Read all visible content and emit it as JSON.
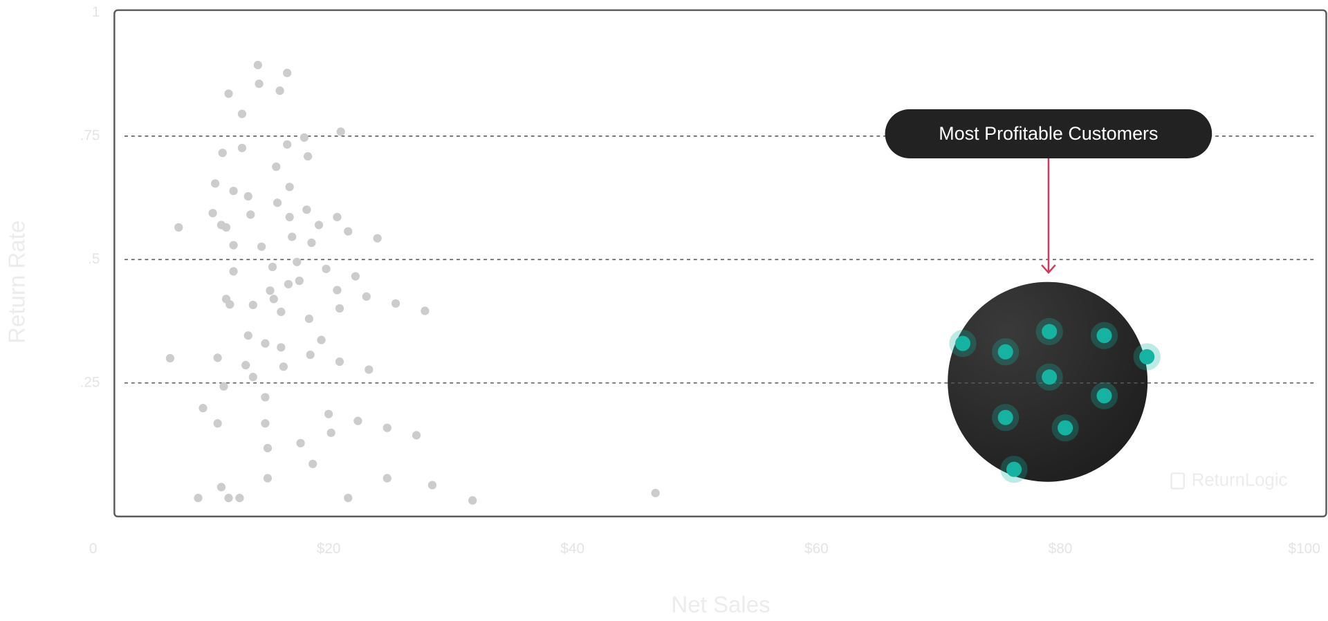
{
  "chart_data": {
    "type": "scatter",
    "x_label": "Net Sales",
    "y_label": "Return Rate",
    "annotation": "Most Profitable Customers",
    "watermark": "ReturnLogic",
    "xlim": [
      0,
      100
    ],
    "ylim": [
      0,
      1
    ],
    "xticks": [
      0,
      {
        "value": 20,
        "label": "$20"
      },
      {
        "value": 40,
        "label": "$40"
      },
      {
        "value": 60,
        "label": "$60"
      },
      {
        "value": 80,
        "label": "$80"
      },
      {
        "value": 100,
        "label": "$100"
      }
    ],
    "yticks": [
      {
        "value": 0.25,
        "label": ".25"
      },
      {
        "value": 0.5,
        "label": ".5"
      },
      {
        "value": 0.75,
        "label": ".75"
      },
      1
    ],
    "grid": true,
    "series": [
      {
        "color": "#cccccc",
        "x": [
          14.2,
          16.6,
          14.3,
          16.0,
          11.8,
          12.9,
          18.0,
          21.0,
          12.9,
          16.6,
          11.3,
          18.3,
          15.7,
          10.7,
          16.8,
          12.2,
          13.4,
          15.8,
          10.5,
          18.2,
          13.6,
          16.8,
          20.7,
          7.7,
          11.2,
          11.6,
          19.2,
          21.6,
          17.0,
          24.0,
          12.2,
          18.6,
          14.5,
          17.4,
          15.4,
          19.8,
          12.2,
          22.2,
          17.6,
          16.7,
          20.7,
          15.2,
          23.1,
          15.5,
          11.6,
          11.9,
          13.8,
          25.5,
          20.9,
          16.1,
          27.9,
          18.4,
          13.4,
          14.8,
          19.4,
          16.1,
          7.0,
          10.9,
          18.5,
          13.2,
          20.9,
          16.3,
          23.3,
          13.8,
          11.4,
          14.8,
          9.7,
          20.0,
          22.4,
          10.9,
          14.8,
          24.8,
          20.2,
          27.2,
          17.7,
          15.0,
          18.7,
          15.0,
          24.8,
          11.2,
          28.5,
          9.3,
          11.8,
          12.7,
          21.6,
          31.8,
          46.8
        ],
        "y": [
          0.894,
          0.878,
          0.856,
          0.842,
          0.836,
          0.795,
          0.747,
          0.759,
          0.726,
          0.733,
          0.716,
          0.709,
          0.688,
          0.654,
          0.647,
          0.639,
          0.628,
          0.615,
          0.594,
          0.601,
          0.591,
          0.586,
          0.586,
          0.565,
          0.57,
          0.565,
          0.57,
          0.557,
          0.546,
          0.543,
          0.529,
          0.534,
          0.526,
          0.495,
          0.485,
          0.481,
          0.476,
          0.466,
          0.457,
          0.45,
          0.438,
          0.437,
          0.425,
          0.42,
          0.42,
          0.409,
          0.408,
          0.411,
          0.401,
          0.394,
          0.396,
          0.38,
          0.346,
          0.33,
          0.337,
          0.322,
          0.3,
          0.301,
          0.307,
          0.286,
          0.293,
          0.283,
          0.277,
          0.262,
          0.243,
          0.221,
          0.199,
          0.187,
          0.173,
          0.168,
          0.168,
          0.159,
          0.149,
          0.144,
          0.128,
          0.118,
          0.086,
          0.057,
          0.057,
          0.039,
          0.043,
          0.017,
          0.017,
          0.017,
          0.017,
          0.012,
          0.027
        ]
      },
      {
        "color": "#17b3a3",
        "x": [
          72.0,
          75.5,
          79.1,
          83.6,
          87.1,
          79.1,
          83.6,
          75.5,
          80.4,
          76.2
        ],
        "y": [
          0.33,
          0.313,
          0.354,
          0.346,
          0.303,
          0.262,
          0.224,
          0.18,
          0.159,
          0.075
        ]
      }
    ]
  }
}
